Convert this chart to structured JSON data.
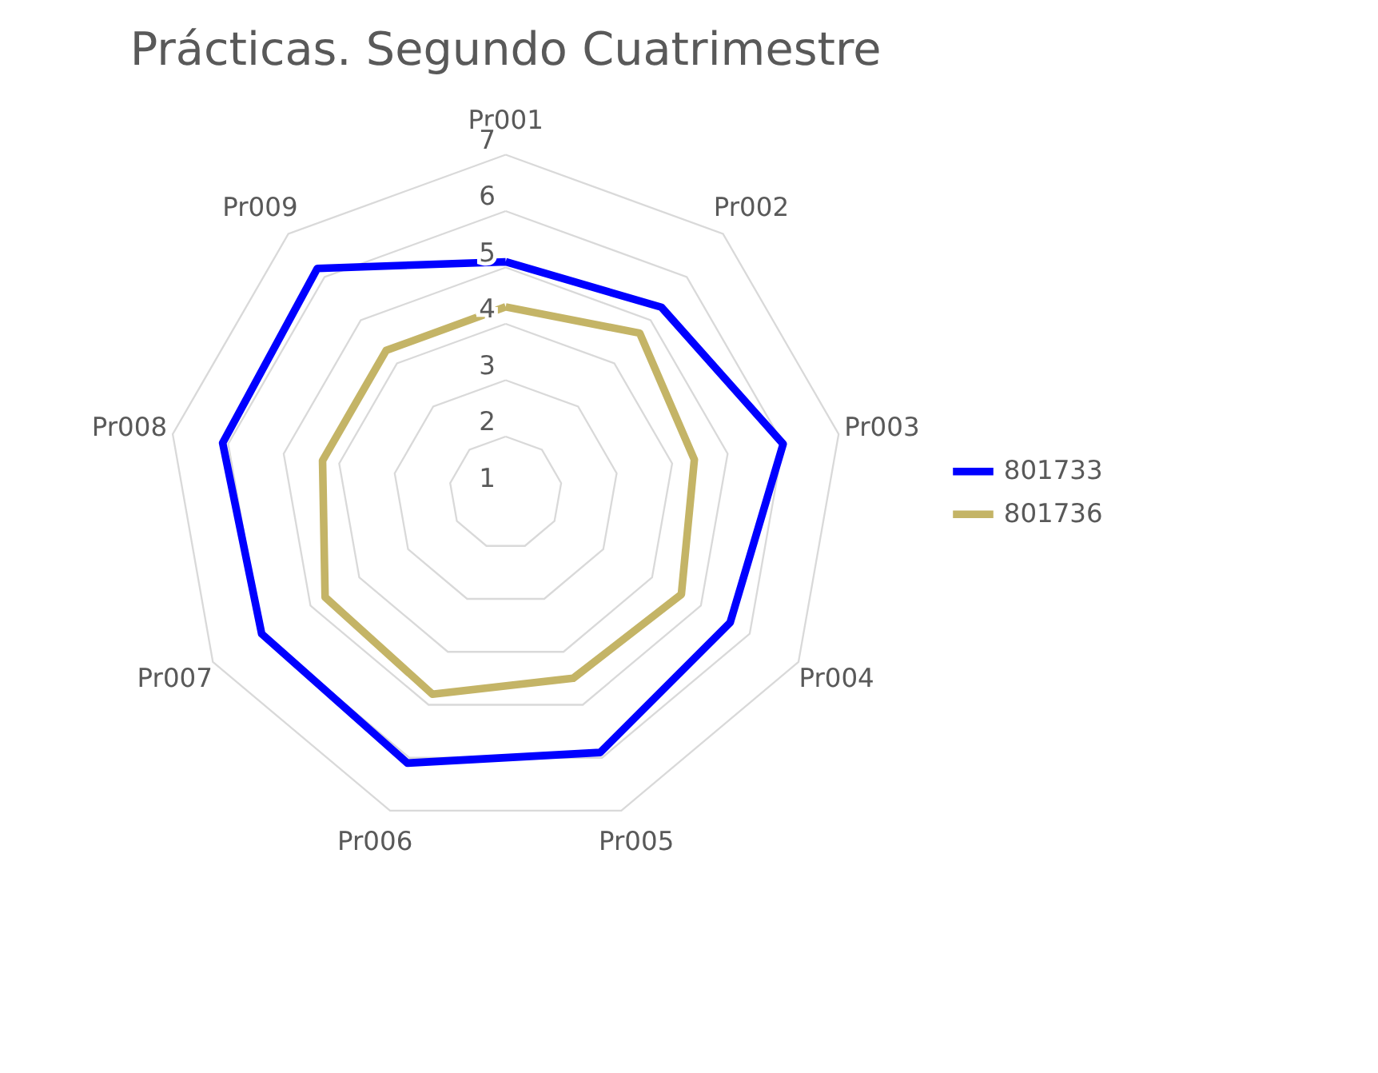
{
  "chart_data": {
    "type": "radar",
    "title": "Prácticas. Segundo Cuatrimestre",
    "categories": [
      "Pr001",
      "Pr002",
      "Pr003",
      "Pr004",
      "Pr005",
      "Pr006",
      "Pr007",
      "Pr008",
      "Pr009"
    ],
    "series": [
      {
        "name": "801733",
        "color": "#0000ff",
        "values": [
          5.1,
          5.3,
          6.0,
          5.6,
          5.9,
          6.1,
          6.0,
          6.1,
          6.2
        ]
      },
      {
        "name": "801736",
        "color": "#c4b466",
        "values": [
          4.3,
          4.7,
          4.4,
          4.6,
          4.5,
          4.8,
          4.7,
          4.3,
          4.3
        ]
      }
    ],
    "ylim": [
      1,
      7
    ],
    "yticks": [
      1,
      2,
      3,
      4,
      5,
      6,
      7
    ],
    "grid": true,
    "legend": "right"
  }
}
